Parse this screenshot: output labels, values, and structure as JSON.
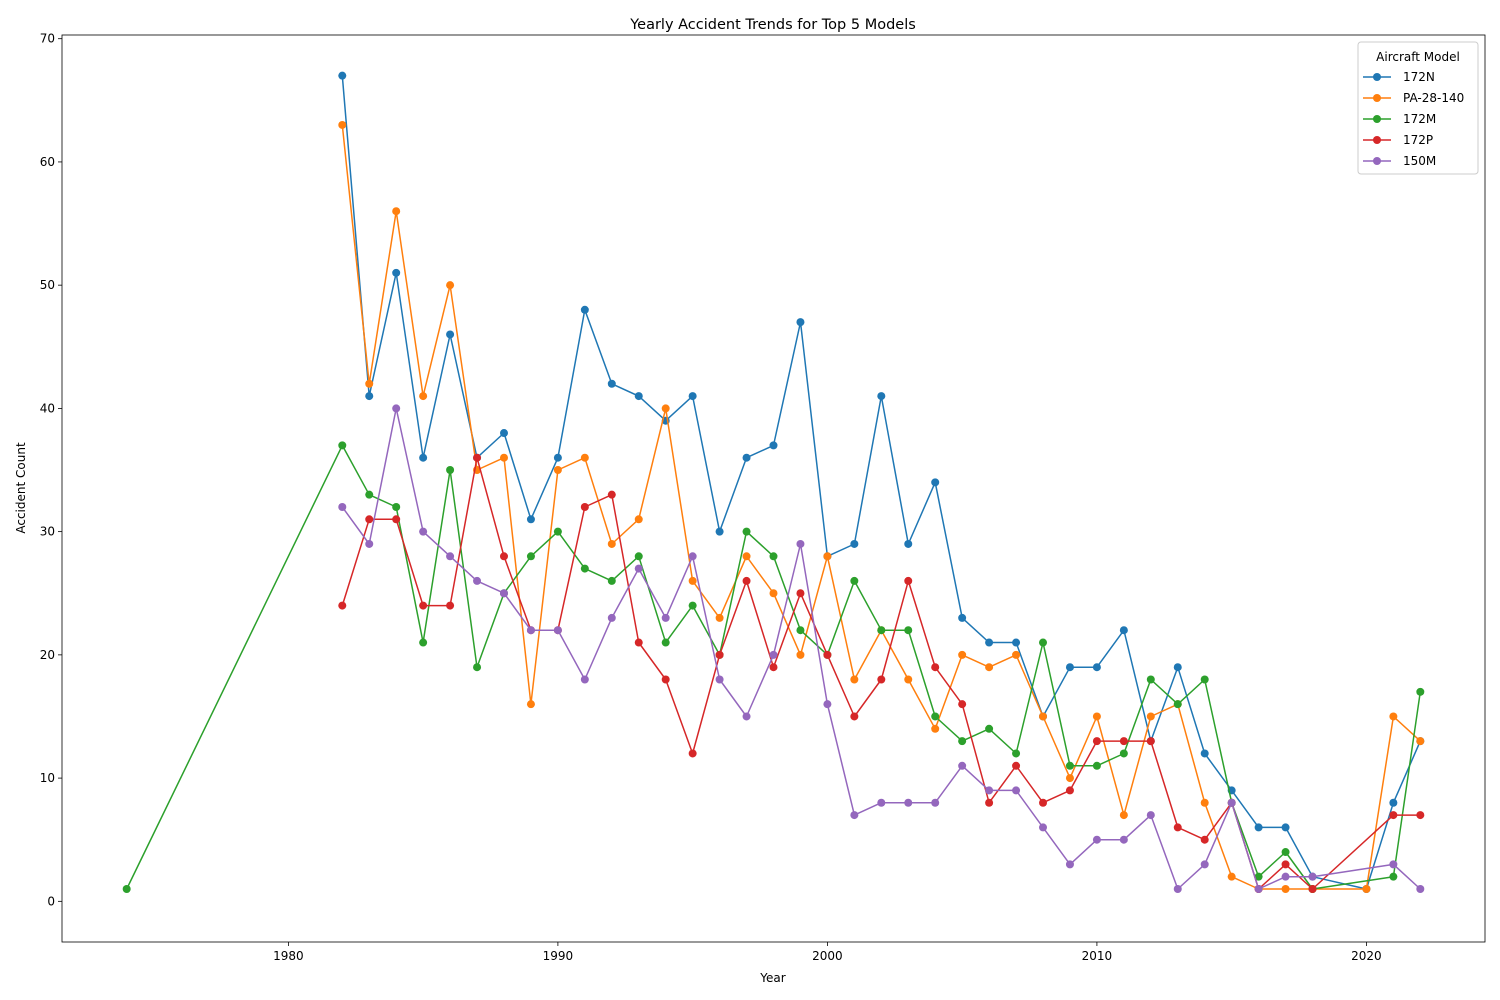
{
  "chart_data": {
    "type": "line",
    "title": "Yearly Accident Trends for Top 5 Models",
    "xlabel": "Year",
    "ylabel": "Accident Count",
    "xlim": [
      1971.6,
      2024.4
    ],
    "ylim": [
      -3.3,
      70.3
    ],
    "xticks": [
      1980,
      1990,
      2000,
      2010,
      2020
    ],
    "yticks": [
      0,
      10,
      20,
      30,
      40,
      50,
      60,
      70
    ],
    "grid": false,
    "legend": {
      "title": "Aircraft Model",
      "placement": "top-right"
    },
    "series": [
      {
        "name": "172N",
        "color": "#1f77b4",
        "x": [
          1982,
          1983,
          1984,
          1985,
          1986,
          1987,
          1988,
          1989,
          1990,
          1991,
          1992,
          1993,
          1994,
          1995,
          1996,
          1997,
          1998,
          1999,
          2000,
          2001,
          2002,
          2003,
          2004,
          2005,
          2006,
          2007,
          2008,
          2009,
          2010,
          2011,
          2012,
          2013,
          2014,
          2015,
          2016,
          2017,
          2018,
          2020,
          2021,
          2022
        ],
        "y": [
          67,
          41,
          51,
          36,
          46,
          36,
          38,
          31,
          36,
          48,
          42,
          41,
          39,
          41,
          30,
          36,
          37,
          47,
          28,
          29,
          41,
          29,
          34,
          23,
          21,
          21,
          15,
          19,
          19,
          22,
          13,
          19,
          12,
          9,
          6,
          6,
          2,
          1,
          8,
          13
        ]
      },
      {
        "name": "PA-28-140",
        "color": "#ff7f0e",
        "x": [
          1982,
          1983,
          1984,
          1985,
          1986,
          1987,
          1988,
          1989,
          1990,
          1991,
          1992,
          1993,
          1994,
          1995,
          1996,
          1997,
          1998,
          1999,
          2000,
          2001,
          2002,
          2003,
          2004,
          2005,
          2006,
          2007,
          2008,
          2009,
          2010,
          2011,
          2012,
          2013,
          2014,
          2015,
          2016,
          2017,
          2018,
          2020,
          2021,
          2022
        ],
        "y": [
          63,
          42,
          56,
          41,
          50,
          35,
          36,
          16,
          35,
          36,
          29,
          31,
          40,
          26,
          23,
          28,
          25,
          20,
          28,
          18,
          22,
          18,
          14,
          20,
          19,
          20,
          15,
          10,
          15,
          7,
          15,
          16,
          8,
          2,
          1,
          1,
          1,
          1,
          15,
          13
        ]
      },
      {
        "name": "172M",
        "color": "#2ca02c",
        "x": [
          1974,
          1982,
          1983,
          1984,
          1985,
          1986,
          1987,
          1988,
          1989,
          1990,
          1991,
          1992,
          1993,
          1994,
          1995,
          1996,
          1997,
          1998,
          1999,
          2000,
          2001,
          2002,
          2003,
          2004,
          2005,
          2006,
          2007,
          2008,
          2009,
          2010,
          2011,
          2012,
          2013,
          2014,
          2015,
          2016,
          2017,
          2018,
          2021,
          2022
        ],
        "y": [
          1,
          37,
          33,
          32,
          21,
          35,
          19,
          25,
          28,
          30,
          27,
          26,
          28,
          21,
          24,
          20,
          30,
          28,
          22,
          20,
          26,
          22,
          22,
          15,
          13,
          14,
          12,
          21,
          11,
          11,
          12,
          18,
          16,
          18,
          8,
          2,
          4,
          1,
          2,
          17
        ]
      },
      {
        "name": "172P",
        "color": "#d62728",
        "x": [
          1982,
          1983,
          1984,
          1985,
          1986,
          1987,
          1988,
          1989,
          1990,
          1991,
          1992,
          1993,
          1994,
          1995,
          1996,
          1997,
          1998,
          1999,
          2000,
          2001,
          2002,
          2003,
          2004,
          2005,
          2006,
          2007,
          2008,
          2009,
          2010,
          2011,
          2012,
          2013,
          2014,
          2015,
          2016,
          2017,
          2018,
          2021,
          2022
        ],
        "y": [
          24,
          31,
          31,
          24,
          24,
          36,
          28,
          22,
          22,
          32,
          33,
          21,
          18,
          12,
          20,
          26,
          19,
          25,
          20,
          15,
          18,
          26,
          19,
          16,
          8,
          11,
          8,
          9,
          13,
          13,
          13,
          6,
          5,
          8,
          1,
          3,
          1,
          7,
          7
        ]
      },
      {
        "name": "150M",
        "color": "#9467bd",
        "x": [
          1982,
          1983,
          1984,
          1985,
          1986,
          1987,
          1988,
          1989,
          1990,
          1991,
          1992,
          1993,
          1994,
          1995,
          1996,
          1997,
          1998,
          1999,
          2000,
          2001,
          2002,
          2003,
          2004,
          2005,
          2006,
          2007,
          2008,
          2009,
          2010,
          2011,
          2012,
          2013,
          2014,
          2015,
          2016,
          2017,
          2018,
          2021,
          2022
        ],
        "y": [
          32,
          29,
          40,
          30,
          28,
          26,
          25,
          22,
          22,
          18,
          23,
          27,
          23,
          28,
          18,
          15,
          20,
          29,
          16,
          7,
          8,
          8,
          8,
          11,
          9,
          9,
          6,
          3,
          5,
          5,
          7,
          1,
          3,
          8,
          1,
          2,
          2,
          3,
          1
        ]
      }
    ]
  }
}
